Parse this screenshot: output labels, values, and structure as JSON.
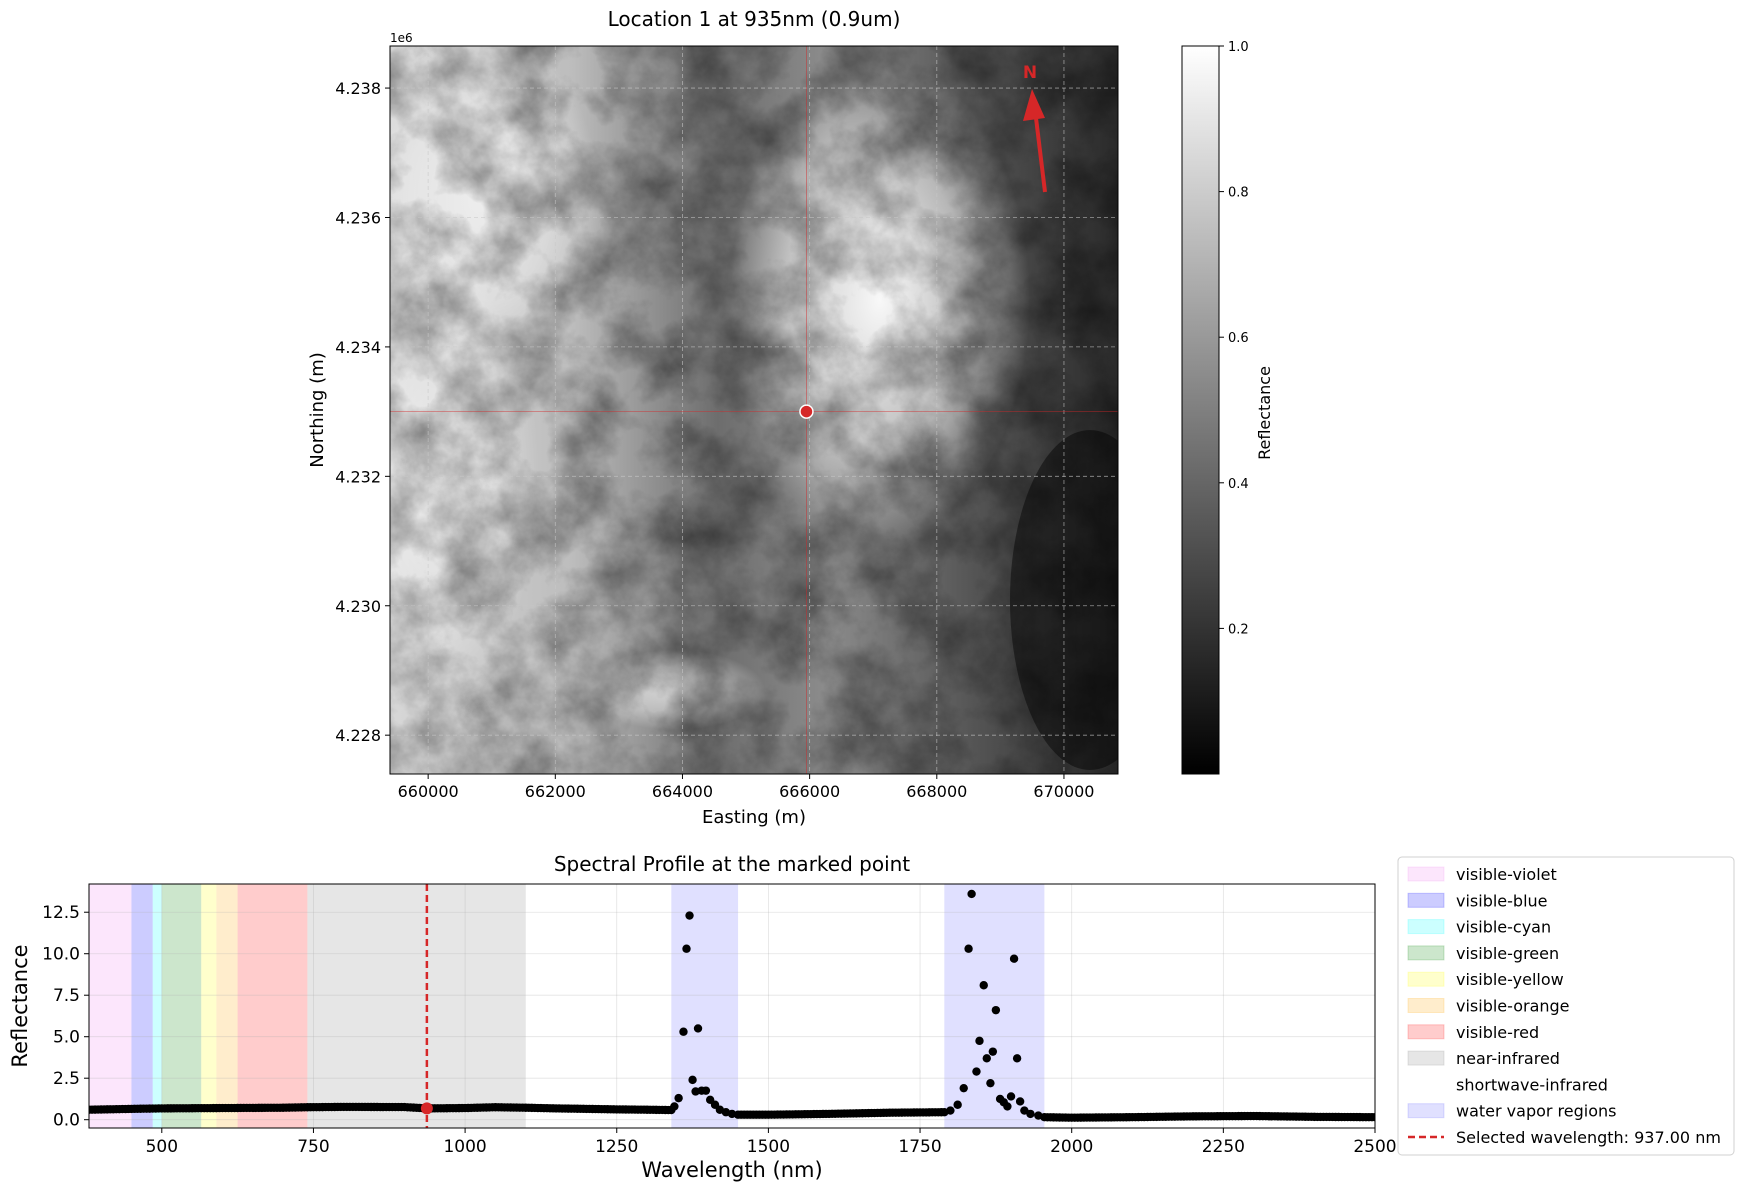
{
  "chart_data": [
    {
      "type": "heatmap",
      "title": "Location 1 at 935nm (0.9um)",
      "xlabel": "Easting (m)",
      "ylabel": "Northing (m)",
      "xlim": [
        659400,
        670850
      ],
      "ylim": [
        4227400,
        4238650
      ],
      "y_offset_label": "1e6",
      "xticks": [
        {
          "value": 660000,
          "label": "660000"
        },
        {
          "value": 662000,
          "label": "662000"
        },
        {
          "value": 664000,
          "label": "664000"
        },
        {
          "value": 666000,
          "label": "666000"
        },
        {
          "value": 668000,
          "label": "668000"
        },
        {
          "value": 670000,
          "label": "670000"
        }
      ],
      "yticks": [
        {
          "value": 4228000,
          "label": "4.228"
        },
        {
          "value": 4230000,
          "label": "4.230"
        },
        {
          "value": 4232000,
          "label": "4.232"
        },
        {
          "value": 4234000,
          "label": "4.234"
        },
        {
          "value": 4236000,
          "label": "4.236"
        },
        {
          "value": 4238000,
          "label": "4.238"
        }
      ],
      "grid": true,
      "colormap": "gray",
      "marked_point": {
        "x": 665950,
        "y": 4233000
      },
      "north_arrow": {
        "label": "N",
        "color": "#d62728"
      },
      "colorbar": {
        "label": "Reflectance",
        "range": [
          0.0,
          1.0
        ],
        "ticks": [
          {
            "value": 0.2,
            "label": "0.2"
          },
          {
            "value": 0.4,
            "label": "0.4"
          },
          {
            "value": 0.6,
            "label": "0.6"
          },
          {
            "value": 0.8,
            "label": "0.8"
          },
          {
            "value": 1.0,
            "label": "1.0"
          }
        ]
      }
    },
    {
      "type": "scatter",
      "title": "Spectral Profile at the marked point",
      "xlabel": "Wavelength (nm)",
      "ylabel": "Reflectance",
      "xlim": [
        380,
        2500
      ],
      "ylim": [
        -0.5,
        14.2
      ],
      "grid": true,
      "legend_position": "right, outside",
      "xticks": [
        500,
        750,
        1000,
        1250,
        1500,
        1750,
        2000,
        2250,
        2500
      ],
      "xtick_labels": [
        "500",
        "750",
        "1000",
        "1250",
        "1500",
        "1750",
        "2000",
        "2250",
        "2500"
      ],
      "yticks": [
        0.0,
        2.5,
        5.0,
        7.5,
        10.0,
        12.5
      ],
      "ytick_labels": [
        "0.0",
        "2.5",
        "5.0",
        "7.5",
        "10.0",
        "12.5"
      ],
      "regions": [
        {
          "name": "visible-violet",
          "x0": 380,
          "x1": 450,
          "color": "#ee82ee",
          "alpha": 0.2
        },
        {
          "name": "visible-blue",
          "x0": 450,
          "x1": 485,
          "color": "#0000ff",
          "alpha": 0.2
        },
        {
          "name": "visible-cyan",
          "x0": 485,
          "x1": 500,
          "color": "#00ffff",
          "alpha": 0.2
        },
        {
          "name": "visible-green",
          "x0": 500,
          "x1": 565,
          "color": "#008000",
          "alpha": 0.2
        },
        {
          "name": "visible-yellow",
          "x0": 565,
          "x1": 590,
          "color": "#ffff00",
          "alpha": 0.2
        },
        {
          "name": "visible-orange",
          "x0": 590,
          "x1": 625,
          "color": "#ffa500",
          "alpha": 0.2
        },
        {
          "name": "visible-red",
          "x0": 625,
          "x1": 740,
          "color": "#ff0000",
          "alpha": 0.2
        },
        {
          "name": "near-infrared",
          "x0": 740,
          "x1": 1100,
          "color": "#808080",
          "alpha": 0.2
        },
        {
          "name": "shortwave-infrared",
          "x0": 1100,
          "x1": 2500,
          "color": "#ffffff",
          "alpha": 0.2
        },
        {
          "name": "water vapor regions",
          "x0": 1340,
          "x1": 1450,
          "color": "#0000ff",
          "alpha": 0.12
        },
        {
          "name": "water vapor regions",
          "x0": 1790,
          "x1": 1955,
          "color": "#0000ff",
          "alpha": 0.12
        }
      ],
      "baseline": [
        [
          380,
          0.6
        ],
        [
          450,
          0.65
        ],
        [
          500,
          0.68
        ],
        [
          600,
          0.7
        ],
        [
          700,
          0.72
        ],
        [
          740,
          0.75
        ],
        [
          800,
          0.77
        ],
        [
          900,
          0.76
        ],
        [
          937,
          0.68
        ],
        [
          1000,
          0.7
        ],
        [
          1050,
          0.75
        ],
        [
          1100,
          0.72
        ],
        [
          1150,
          0.68
        ],
        [
          1200,
          0.65
        ],
        [
          1250,
          0.62
        ],
        [
          1300,
          0.6
        ],
        [
          1340,
          0.58
        ],
        [
          1450,
          0.3
        ],
        [
          1500,
          0.3
        ],
        [
          1600,
          0.35
        ],
        [
          1700,
          0.42
        ],
        [
          1790,
          0.45
        ],
        [
          1955,
          0.15
        ],
        [
          2000,
          0.12
        ],
        [
          2100,
          0.15
        ],
        [
          2200,
          0.2
        ],
        [
          2300,
          0.22
        ],
        [
          2400,
          0.17
        ],
        [
          2500,
          0.15
        ]
      ],
      "peaks": [
        [
          1345,
          0.8
        ],
        [
          1352,
          1.3
        ],
        [
          1360,
          5.3
        ],
        [
          1365,
          10.3
        ],
        [
          1370,
          12.3
        ],
        [
          1375,
          2.4
        ],
        [
          1380,
          1.7
        ],
        [
          1384,
          5.5
        ],
        [
          1390,
          1.75
        ],
        [
          1397,
          1.75
        ],
        [
          1404,
          1.2
        ],
        [
          1412,
          0.9
        ],
        [
          1420,
          0.6
        ],
        [
          1430,
          0.45
        ],
        [
          1440,
          0.35
        ],
        [
          1800,
          0.55
        ],
        [
          1812,
          0.9
        ],
        [
          1822,
          1.9
        ],
        [
          1830,
          10.3
        ],
        [
          1835,
          13.6
        ],
        [
          1843,
          2.9
        ],
        [
          1848,
          4.75
        ],
        [
          1855,
          8.1
        ],
        [
          1860,
          3.7
        ],
        [
          1866,
          2.2
        ],
        [
          1870,
          4.1
        ],
        [
          1875,
          6.6
        ],
        [
          1882,
          1.25
        ],
        [
          1888,
          1.05
        ],
        [
          1894,
          0.8
        ],
        [
          1900,
          1.4
        ],
        [
          1905,
          9.7
        ],
        [
          1910,
          3.7
        ],
        [
          1915,
          1.1
        ],
        [
          1922,
          0.55
        ],
        [
          1932,
          0.35
        ],
        [
          1945,
          0.25
        ]
      ],
      "selected": {
        "x": 937,
        "y": 0.68,
        "color": "#d62728"
      },
      "legend_entries": [
        "visible-violet",
        "visible-blue",
        "visible-cyan",
        "visible-green",
        "visible-yellow",
        "visible-orange",
        "visible-red",
        "near-infrared",
        "shortwave-infrared",
        "water vapor regions",
        "Selected wavelength: 937.00 nm"
      ]
    }
  ]
}
